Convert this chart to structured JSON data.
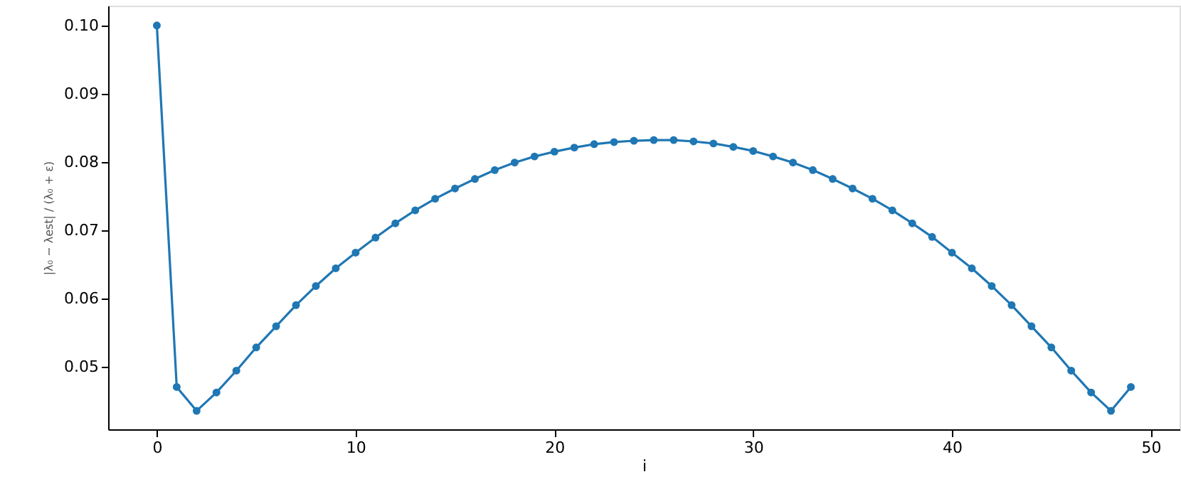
{
  "chart_data": {
    "type": "line",
    "xlabel": "i",
    "ylabel": "|λ₀ − λest| / (λ₀ + ε)",
    "x": [
      0,
      1,
      2,
      3,
      4,
      5,
      6,
      7,
      8,
      9,
      10,
      11,
      12,
      13,
      14,
      15,
      16,
      17,
      18,
      19,
      20,
      21,
      22,
      23,
      24,
      25,
      26,
      27,
      28,
      29,
      30,
      31,
      32,
      33,
      34,
      35,
      36,
      37,
      38,
      39,
      40,
      41,
      42,
      43,
      44,
      45,
      46,
      47,
      48,
      49
    ],
    "series": [
      {
        "color": "#1f77b4",
        "values": [
          0.1,
          0.047,
          0.0435,
          0.0462,
          0.0494,
          0.0528,
          0.0559,
          0.059,
          0.0618,
          0.0644,
          0.0667,
          0.0689,
          0.071,
          0.0729,
          0.0746,
          0.0761,
          0.0775,
          0.0788,
          0.0799,
          0.0808,
          0.0815,
          0.0821,
          0.0826,
          0.0829,
          0.0831,
          0.0832,
          0.0832,
          0.083,
          0.0827,
          0.0822,
          0.0816,
          0.0808,
          0.0799,
          0.0788,
          0.0775,
          0.0761,
          0.0746,
          0.0729,
          0.071,
          0.069,
          0.0667,
          0.0644,
          0.0618,
          0.059,
          0.0559,
          0.0528,
          0.0494,
          0.0462,
          0.0435,
          0.047
        ]
      }
    ],
    "xlim": [
      -2.45,
      51.45
    ],
    "xticks": [
      0,
      10,
      20,
      30,
      40,
      50
    ],
    "ylim": [
      0.0408,
      0.1029
    ],
    "yticks": [
      0.05,
      0.06,
      0.07,
      0.08,
      0.09,
      {
        "value": 0.1,
        "label": "0.10"
      }
    ],
    "marker": "circle",
    "line_style": "solid",
    "grid": false
  }
}
